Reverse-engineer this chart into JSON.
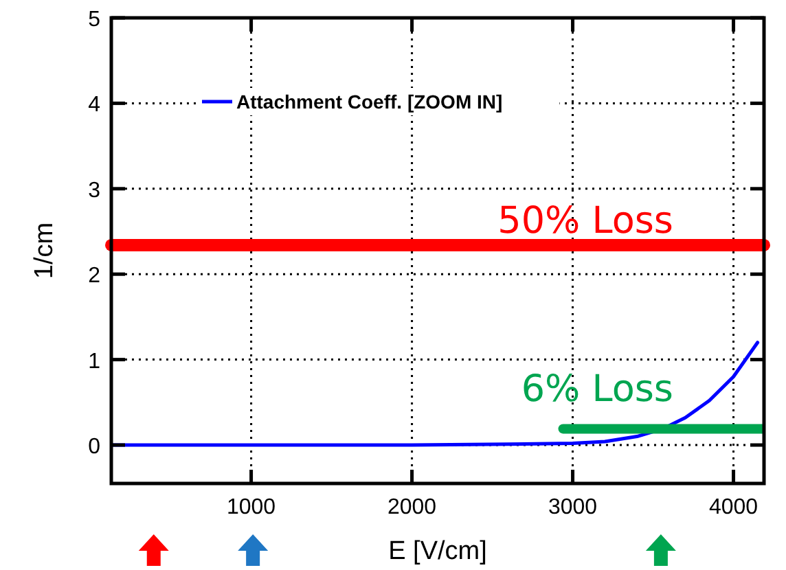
{
  "chart_data": {
    "type": "line",
    "xlabel": "E [V/cm]",
    "ylabel": "1/cm",
    "xlim": [
      130,
      4190
    ],
    "xticks": [
      1000,
      2000,
      3000,
      4000
    ],
    "ylim": [
      -0.45,
      5
    ],
    "yticks": [
      0,
      1,
      2,
      3,
      4,
      5
    ],
    "grid": true,
    "legend": "top left",
    "line_style": "solid",
    "marker": "none",
    "series": [
      {
        "name": "Attachment Coeff. [ZOOM IN]",
        "color": "#0000ff",
        "x": [
          130,
          2000,
          2600,
          3000,
          3200,
          3400,
          3560,
          3700,
          3850,
          4000,
          4150
        ],
        "values": [
          0,
          0,
          0.01,
          0.02,
          0.04,
          0.1,
          0.19,
          0.32,
          0.52,
          0.8,
          1.2
        ]
      },
      {
        "color": "#00a550",
        "x": [
          2940,
          4190
        ],
        "values": [
          0.19,
          0.19
        ]
      }
    ],
    "ref_lines": [
      {
        "axis": "y",
        "value": 2.34,
        "label": "50% Loss",
        "color": "#ff0000"
      }
    ],
    "annotations": [
      "6% Loss"
    ]
  }
}
